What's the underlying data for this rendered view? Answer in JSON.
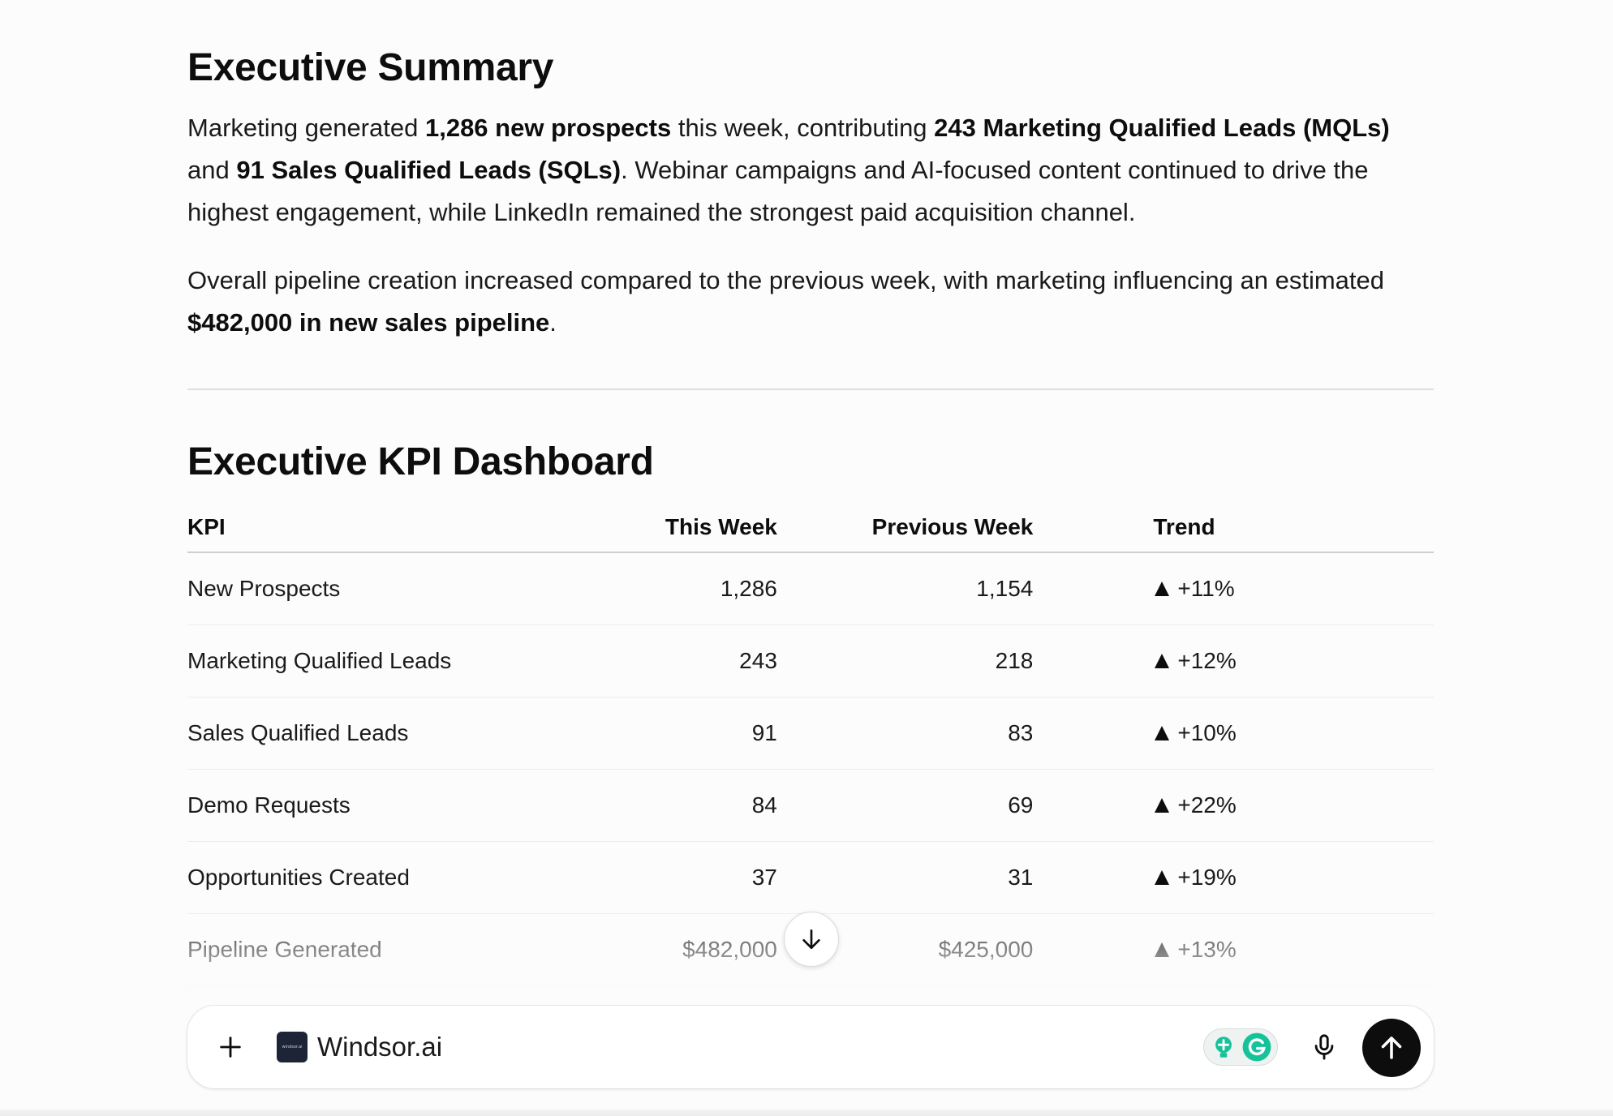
{
  "summary": {
    "heading": "Executive Summary",
    "p1": {
      "t1": "Marketing generated ",
      "b1": "1,286 new prospects",
      "t2": " this week, contributing ",
      "b2": "243 Marketing Qualified Leads (MQLs)",
      "t3": " and ",
      "b3": "91 Sales Qualified Leads (SQLs)",
      "t4": ". Webinar campaigns and AI-focused content continued to drive the highest engagement, while LinkedIn remained the strongest paid acquisition channel."
    },
    "p2": {
      "t1": "Overall pipeline creation increased compared to the previous week, with marketing influencing an estimated ",
      "b1": "$482,000 in new sales pipeline",
      "t2": "."
    }
  },
  "dashboard": {
    "heading": "Executive KPI Dashboard",
    "columns": {
      "kpi": "KPI",
      "this_week": "This Week",
      "previous_week": "Previous Week",
      "trend": "Trend"
    },
    "rows": [
      {
        "kpi": "New Prospects",
        "this_week": "1,286",
        "previous_week": "1,154",
        "trend": "+11%"
      },
      {
        "kpi": "Marketing Qualified Leads",
        "this_week": "243",
        "previous_week": "218",
        "trend": "+12%"
      },
      {
        "kpi": "Sales Qualified Leads",
        "this_week": "91",
        "previous_week": "83",
        "trend": "+10%"
      },
      {
        "kpi": "Demo Requests",
        "this_week": "84",
        "previous_week": "69",
        "trend": "+22%"
      },
      {
        "kpi": "Opportunities Created",
        "this_week": "37",
        "previous_week": "31",
        "trend": "+19%"
      },
      {
        "kpi": "Pipeline Generated",
        "this_week": "$482,000",
        "previous_week": "$425,000",
        "trend": "+13%"
      }
    ],
    "trend_icon": "triangle-up-icon"
  },
  "composer": {
    "partial_row_text": "/",
    "chip_label": "Windsor.ai",
    "chip_logo_text": "windsor.ai",
    "icons": {
      "add": "plus-icon",
      "scroll": "arrow-down-icon",
      "extension_1": "lightbulb-icon",
      "extension_2": "grammarly-icon",
      "mic": "microphone-icon",
      "send": "arrow-up-icon"
    }
  },
  "colors": {
    "background": "#fcfcfc",
    "text": "#0d0d0d",
    "send_button": "#0d0d0d",
    "grammarly_green": "#15c39a",
    "logo_bg": "#1c2436"
  }
}
